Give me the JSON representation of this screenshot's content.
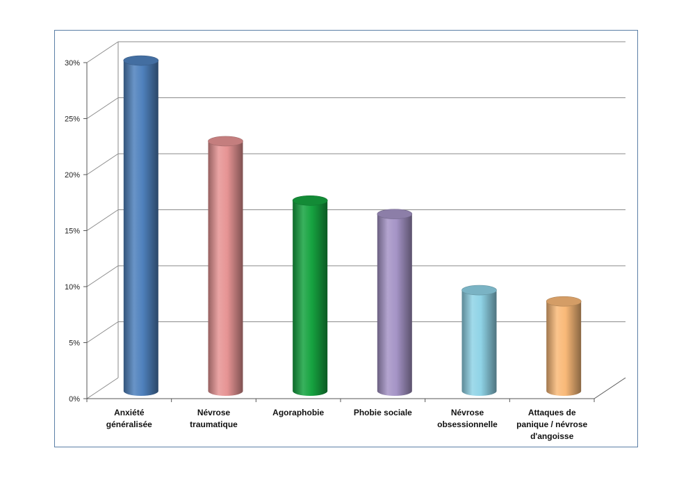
{
  "chart_data": {
    "type": "bar",
    "title": "",
    "xlabel": "",
    "ylabel": "",
    "categories": [
      "Anxiété généralisée",
      "Névrose traumatique",
      "Agoraphobie",
      "Phobie sociale",
      "Névrose obsessionnelle",
      "Attaques de panique / névrose d'angoisse"
    ],
    "category_label_lines": [
      [
        "Anxiété",
        "généralisée"
      ],
      [
        "Névrose",
        "traumatique"
      ],
      [
        "Agoraphobie"
      ],
      [
        "Phobie sociale"
      ],
      [
        "Névrose",
        "obsessionnelle"
      ],
      [
        "Attaques de",
        "panique / névrose",
        "d'angoisse"
      ]
    ],
    "values": [
      29.5,
      22.3,
      17,
      15.8,
      9,
      8
    ],
    "value_unit": "%",
    "ylim": [
      0,
      30
    ],
    "yticks": [
      0,
      5,
      10,
      15,
      20,
      25,
      30
    ],
    "ytick_labels": [
      "0%",
      "5%",
      "10%",
      "15%",
      "20%",
      "25%",
      "30%"
    ],
    "grid": true,
    "legend": "none",
    "bar_shape": "3d-cylinder",
    "colors": [
      "#4f81bd",
      "#e69494",
      "#16a340",
      "#a594c6",
      "#8fd3e6",
      "#f9b978"
    ]
  }
}
